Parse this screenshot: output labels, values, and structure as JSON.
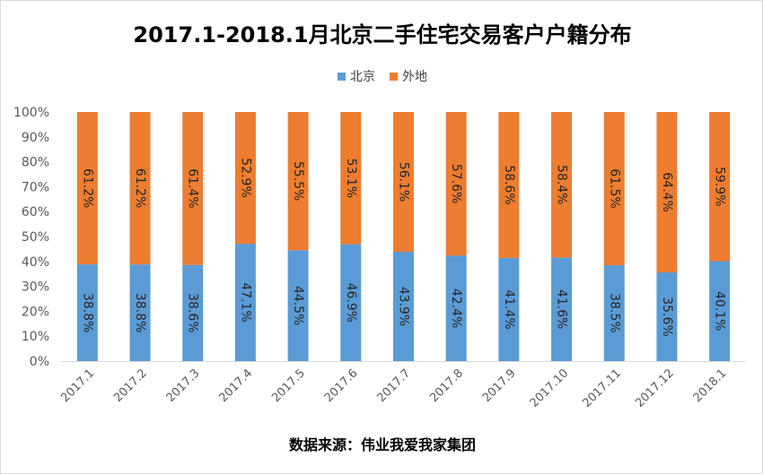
{
  "chart_data": {
    "type": "bar",
    "stacked": true,
    "title": "2017.1-2018.1月北京二手住宅交易客户户籍分布",
    "categories": [
      "2017.1",
      "2017.2",
      "2017.3",
      "2017.4",
      "2017.5",
      "2017.6",
      "2017.7",
      "2017.8",
      "2017.9",
      "2017.10",
      "2017.11",
      "2017.12",
      "2018.1"
    ],
    "series": [
      {
        "name": "北京",
        "color": "#5b9bd5",
        "values": [
          38.8,
          38.8,
          38.6,
          47.1,
          44.5,
          46.9,
          43.9,
          42.4,
          41.4,
          41.6,
          38.5,
          35.6,
          40.1
        ],
        "labels": [
          "38.8%",
          "38.8%",
          "38.6%",
          "47.1%",
          "44.5%",
          "46.9%",
          "43.9%",
          "42.4%",
          "41.4%",
          "41.6%",
          "38.5%",
          "35.6%",
          "40.1%"
        ]
      },
      {
        "name": "外地",
        "color": "#ed7d31",
        "values": [
          61.2,
          61.2,
          61.4,
          52.9,
          55.5,
          53.1,
          56.1,
          57.6,
          58.6,
          58.4,
          61.5,
          64.4,
          59.9
        ],
        "labels": [
          "61.2%",
          "61.2%",
          "61.4%",
          "52.9%",
          "55.5%",
          "53.1%",
          "56.1%",
          "57.6%",
          "58.6%",
          "58.4%",
          "61.5%",
          "64.4%",
          "59.9%"
        ]
      }
    ],
    "yticks": [
      "0%",
      "10%",
      "20%",
      "30%",
      "40%",
      "50%",
      "60%",
      "70%",
      "80%",
      "90%",
      "100%"
    ],
    "ylim": [
      0,
      100
    ],
    "legend_position": "top",
    "grid": false,
    "source": "数据来源：伟业我爱我家集团"
  }
}
